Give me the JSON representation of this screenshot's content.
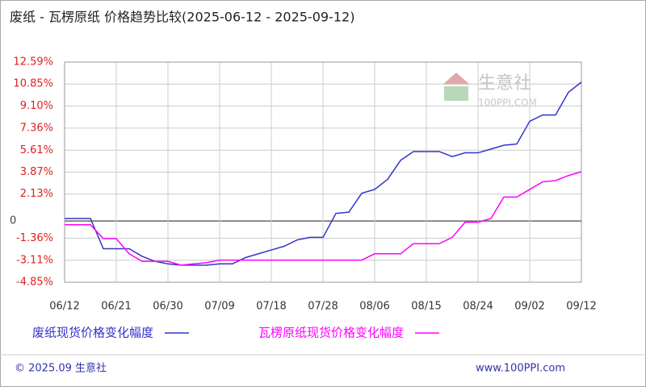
{
  "chart_data": {
    "type": "line",
    "title": "废纸 - 瓦楞原纸 价格趋势比较(2025-06-12 - 2025-09-12)",
    "watermark": "生意社",
    "watermark_url": "100PPI.COM",
    "footer_left": "© 2025.09 生意社",
    "footer_right": "www.100PPI.com",
    "categories": [
      "06/12",
      null,
      null,
      null,
      "06/21",
      null,
      null,
      null,
      "06/30",
      null,
      null,
      null,
      "07/09",
      null,
      null,
      null,
      "07/18",
      null,
      null,
      null,
      "07/28",
      null,
      null,
      null,
      "08/06",
      null,
      null,
      null,
      "08/15",
      null,
      null,
      null,
      "08/24",
      null,
      null,
      null,
      "09/02",
      null,
      null,
      null,
      "09/12"
    ],
    "series": [
      {
        "name": "废纸现货价格变化幅度",
        "color": "#3333cc",
        "values": [
          0.2,
          0.2,
          0.2,
          -2.2,
          -2.2,
          -2.2,
          -2.8,
          -3.2,
          -3.4,
          -3.5,
          -3.5,
          -3.5,
          -3.4,
          -3.4,
          -2.9,
          -2.6,
          -2.3,
          -2.0,
          -1.5,
          -1.3,
          -1.3,
          0.6,
          0.7,
          2.2,
          2.5,
          3.3,
          4.8,
          5.5,
          5.5,
          5.5,
          5.1,
          5.4,
          5.4,
          5.7,
          6.0,
          6.1,
          7.9,
          8.4,
          8.4,
          10.2,
          11.0
        ]
      },
      {
        "name": "瓦楞原纸现货价格变化幅度",
        "color": "#ff00ff",
        "values": [
          -0.3,
          -0.3,
          -0.3,
          -1.4,
          -1.4,
          -2.6,
          -3.2,
          -3.2,
          -3.2,
          -3.5,
          -3.4,
          -3.3,
          -3.1,
          -3.1,
          -3.1,
          -3.1,
          -3.1,
          -3.1,
          -3.1,
          -3.1,
          -3.1,
          -3.1,
          -3.1,
          -3.1,
          -2.6,
          -2.6,
          -2.6,
          -1.8,
          -1.8,
          -1.8,
          -1.3,
          -0.1,
          -0.1,
          0.2,
          1.9,
          1.9,
          2.5,
          3.1,
          3.2,
          3.6,
          3.9
        ]
      }
    ],
    "ylim": [
      -4.85,
      12.59
    ],
    "yticks": [
      {
        "value": 12.59,
        "label": "12.59%"
      },
      {
        "value": 10.85,
        "label": "10.85%"
      },
      {
        "value": 9.1,
        "label": "9.10%"
      },
      {
        "value": 7.36,
        "label": "7.36%"
      },
      {
        "value": 5.61,
        "label": "5.61%"
      },
      {
        "value": 3.87,
        "label": "3.87%"
      },
      {
        "value": 2.13,
        "label": "2.13%"
      },
      0,
      {
        "value": -1.36,
        "label": "-1.36%"
      },
      {
        "value": -3.11,
        "label": "-3.11%"
      },
      {
        "value": -4.85,
        "label": "-4.85%"
      }
    ],
    "grid": true
  }
}
